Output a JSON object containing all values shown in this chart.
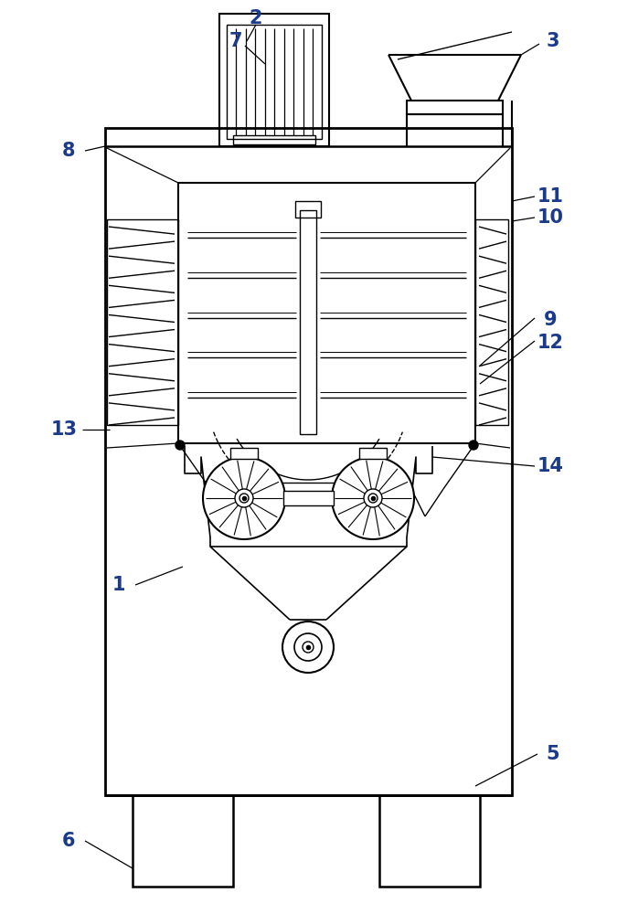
{
  "bg_color": "#ffffff",
  "lc": "#000000",
  "lc_label": "#1a3a8c",
  "lw": 1.5,
  "fig_w": 6.75,
  "fig_h": 10.0
}
